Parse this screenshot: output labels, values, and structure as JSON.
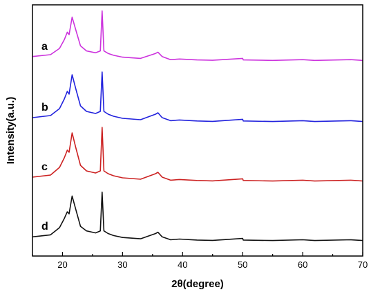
{
  "chart_data": {
    "type": "line",
    "xlabel": "2θ(degree)",
    "ylabel": "Intensity(a.u.)",
    "xlim": [
      15,
      70
    ],
    "xticks": [
      20,
      30,
      40,
      50,
      60,
      70
    ],
    "grid": false,
    "y_ticks_shown": false,
    "series": [
      {
        "label": "a",
        "color": "#cc33dd",
        "baseline": 0.92,
        "x": [
          15,
          18,
          19.5,
          20.3,
          20.8,
          21.1,
          21.6,
          22.2,
          23,
          24,
          25.5,
          26.3,
          26.6,
          26.9,
          27.6,
          28.5,
          30,
          33,
          35.5,
          35.9,
          36.6,
          38,
          39.5,
          42.4,
          45,
          50,
          50.1,
          55,
          60,
          62,
          68,
          70
        ],
        "y": [
          1.25,
          1.4,
          1.9,
          2.6,
          3.2,
          3.0,
          4.4,
          3.4,
          2.1,
          1.7,
          1.55,
          1.7,
          4.9,
          1.7,
          1.5,
          1.35,
          1.2,
          1.1,
          1.5,
          1.6,
          1.25,
          1.0,
          1.05,
          0.98,
          0.95,
          1.1,
          0.98,
          0.94,
          1.0,
          0.94,
          1.0,
          0.94
        ]
      },
      {
        "label": "b",
        "color": "#2222dd",
        "baseline": 0.62,
        "x": [
          15,
          18,
          19.5,
          20.3,
          20.8,
          21.1,
          21.6,
          22.2,
          23,
          24,
          25.5,
          26.3,
          26.6,
          26.9,
          27.6,
          28.5,
          30,
          33,
          35.5,
          35.9,
          36.6,
          38,
          39.5,
          42.4,
          45,
          50,
          50.1,
          55,
          60,
          62,
          68,
          70
        ],
        "y": [
          1.2,
          1.35,
          1.85,
          2.55,
          3.1,
          2.9,
          4.3,
          3.3,
          2.05,
          1.65,
          1.5,
          1.65,
          4.5,
          1.65,
          1.45,
          1.3,
          1.15,
          1.05,
          1.45,
          1.55,
          1.2,
          0.98,
          1.03,
          0.96,
          0.93,
          1.08,
          0.96,
          0.92,
          0.98,
          0.92,
          0.98,
          0.92
        ]
      },
      {
        "label": "c",
        "color": "#cc2222",
        "baseline": 0.32,
        "x": [
          15,
          18,
          19.5,
          20.3,
          20.8,
          21.1,
          21.6,
          22.2,
          23,
          24,
          25.5,
          26.3,
          26.6,
          26.9,
          27.6,
          28.5,
          30,
          33,
          35.5,
          35.9,
          36.6,
          38,
          39.5,
          42.4,
          45,
          50,
          50.1,
          55,
          60,
          62,
          68,
          70
        ],
        "y": [
          1.2,
          1.35,
          1.9,
          2.6,
          3.15,
          3.0,
          4.4,
          3.35,
          2.05,
          1.65,
          1.5,
          1.65,
          4.8,
          1.65,
          1.45,
          1.3,
          1.15,
          1.05,
          1.45,
          1.55,
          1.2,
          0.98,
          1.03,
          0.96,
          0.93,
          1.08,
          0.96,
          0.92,
          0.98,
          0.92,
          0.98,
          0.92
        ]
      },
      {
        "label": "d",
        "color": "#111111",
        "baseline": 0.0,
        "x": [
          15,
          18,
          19.5,
          20.3,
          20.8,
          21.1,
          21.6,
          22.2,
          23,
          24,
          25.5,
          26.3,
          26.6,
          26.9,
          27.6,
          28.5,
          30,
          33,
          35.5,
          35.9,
          36.6,
          38,
          39.5,
          42.4,
          45,
          50,
          50.1,
          55,
          60,
          62,
          68,
          70
        ],
        "y": [
          1.2,
          1.35,
          1.9,
          2.6,
          3.1,
          2.95,
          4.3,
          3.3,
          2.0,
          1.65,
          1.5,
          1.65,
          4.6,
          1.65,
          1.45,
          1.3,
          1.15,
          1.05,
          1.45,
          1.55,
          1.2,
          0.98,
          1.03,
          0.96,
          0.93,
          1.08,
          0.96,
          0.92,
          0.98,
          0.92,
          0.98,
          0.92
        ]
      }
    ]
  }
}
